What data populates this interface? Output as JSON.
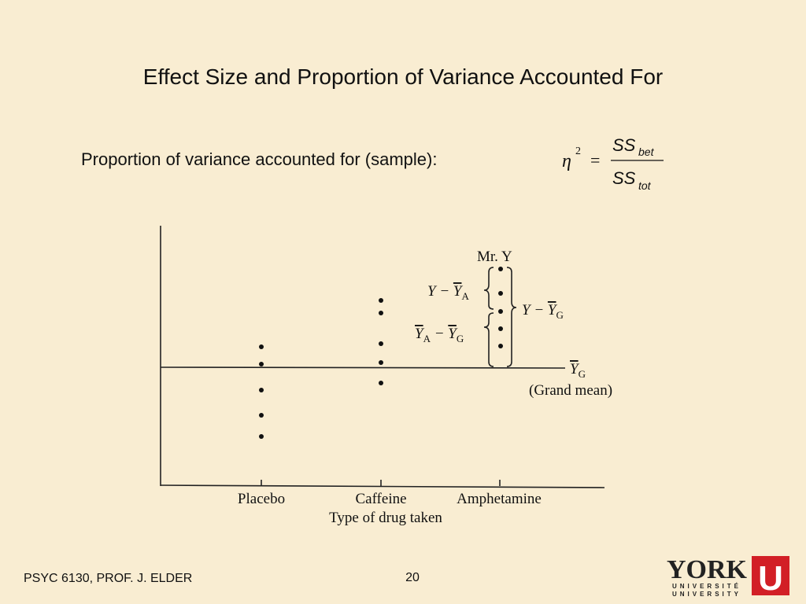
{
  "header": {
    "title": "Effect Size and Proportion of Variance Accounted For"
  },
  "formula": {
    "label": "Proportion of variance accounted for (sample):",
    "symbol": "η",
    "power": "2",
    "equals": "=",
    "numerator": {
      "main": "SS",
      "sub": "bet"
    },
    "denominator": {
      "main": "SS",
      "sub": "tot"
    }
  },
  "diagram": {
    "annotations": [
      {
        "parts": [
          {
            "text": "Mr. Y"
          }
        ]
      },
      {
        "parts": [
          {
            "text": "Y − "
          },
          {
            "text": "Y",
            "over": true
          },
          {
            "text": "A",
            "sub": true
          }
        ]
      },
      {
        "parts": [
          {
            "text": "Y",
            "over": true
          },
          {
            "text": "A",
            "sub": true
          },
          {
            "text": " − "
          },
          {
            "text": "Y",
            "over": true
          },
          {
            "text": "G",
            "sub": true
          }
        ]
      },
      {
        "parts": [
          {
            "text": "Y − "
          },
          {
            "text": "Y",
            "over": true
          },
          {
            "text": "G",
            "sub": true
          }
        ]
      },
      {
        "parts": [
          {
            "text": "Y",
            "over": true
          },
          {
            "text": "G",
            "sub": true
          }
        ]
      },
      {
        "parts": [
          {
            "text": "(Grand mean)"
          }
        ]
      }
    ],
    "categories": [
      "Placebo",
      "Caffeine",
      "Amphetamine"
    ],
    "x_label": "Type of drug taken"
  },
  "footer": {
    "course": "PSYC 6130, PROF. J. ELDER",
    "page": "20",
    "logo": {
      "name": "YORK",
      "line1": "UNIVERSITÉ",
      "line2": "UNIVERSITY",
      "mark": "U"
    }
  }
}
